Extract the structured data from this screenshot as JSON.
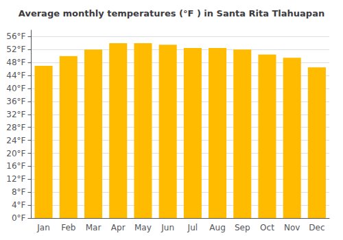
{
  "chart_data": {
    "type": "bar",
    "title": "Average monthly temperatures (°F ) in Santa Rita Tlahuapan",
    "categories": [
      "Jan",
      "Feb",
      "Mar",
      "Apr",
      "May",
      "Jun",
      "Jul",
      "Aug",
      "Sep",
      "Oct",
      "Nov",
      "Dec"
    ],
    "values": [
      47,
      50,
      52,
      54,
      54,
      53.5,
      52.5,
      52.5,
      52,
      50.5,
      49.5,
      46.5
    ],
    "color": "#FFBB00",
    "ylim": [
      0,
      58
    ],
    "yticks": [
      {
        "value": 0,
        "label": "0°F"
      },
      {
        "value": 4,
        "label": "4°F"
      },
      {
        "value": 8,
        "label": "8°F"
      },
      {
        "value": 12,
        "label": "12°F"
      },
      {
        "value": 16,
        "label": "16°F"
      },
      {
        "value": 20,
        "label": "20°F"
      },
      {
        "value": 24,
        "label": "24°F"
      },
      {
        "value": 28,
        "label": "28°F"
      },
      {
        "value": 32,
        "label": "32°F"
      },
      {
        "value": 36,
        "label": "36°F"
      },
      {
        "value": 40,
        "label": "40°F"
      },
      {
        "value": 44,
        "label": "44°F"
      },
      {
        "value": 48,
        "label": "48°F"
      },
      {
        "value": 52,
        "label": "52°F"
      },
      {
        "value": 56,
        "label": "56°F"
      }
    ],
    "grid": true
  }
}
